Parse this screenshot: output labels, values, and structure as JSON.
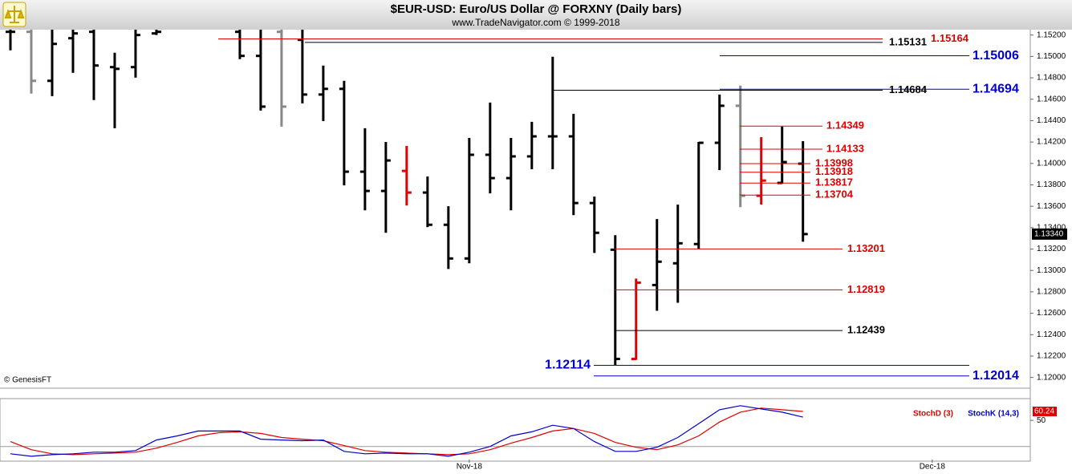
{
  "chart_data": [
    {
      "type": "ohlc",
      "title": "$EUR-USD:  Euro/US Dollar @ FORXNY  (Daily bars)",
      "subtitle": "www.TradeNavigator.com © 1999-2018",
      "source": "© GenesisFT",
      "xlim": [
        -0.5,
        48.9
      ],
      "ylim": [
        1.119,
        1.1525
      ],
      "yticks": [
        {
          "value": 1.12,
          "label": "1.12000"
        },
        {
          "value": 1.122,
          "label": "1.12200"
        },
        {
          "value": 1.124,
          "label": "1.12400"
        },
        {
          "value": 1.126,
          "label": "1.12600"
        },
        {
          "value": 1.128,
          "label": "1.12800"
        },
        {
          "value": 1.13,
          "label": "1.13000"
        },
        {
          "value": 1.132,
          "label": "1.13200"
        },
        {
          "value": 1.134,
          "label": "1.13400"
        },
        {
          "value": 1.136,
          "label": "1.13600"
        },
        {
          "value": 1.138,
          "label": "1.13800"
        },
        {
          "value": 1.14,
          "label": "1.14000"
        },
        {
          "value": 1.142,
          "label": "1.14200"
        },
        {
          "value": 1.144,
          "label": "1.14400"
        },
        {
          "value": 1.146,
          "label": "1.14600"
        },
        {
          "value": 1.148,
          "label": "1.14800"
        },
        {
          "value": 1.15,
          "label": "1.15000"
        },
        {
          "value": 1.152,
          "label": "1.15200"
        }
      ],
      "open": [
        1.1523,
        1.1523,
        1.14772,
        1.1517,
        1.1523,
        1.149,
        1.149,
        1.15215,
        null,
        null,
        null,
        1.1523,
        1.15005,
        1.1523,
        1.15155,
        1.14644,
        1.14697,
        1.13923,
        1.13743,
        1.1393,
        1.13728,
        1.13427,
        1.13112,
        1.14081,
        1.13863,
        1.14066,
        1.14253,
        1.14253,
        1.1363,
        1.13194,
        1.12173,
        1.12864,
        1.13067,
        1.13247,
        1.14193,
        1.14539,
        1.13698,
        1.13818,
        1.13998
      ],
      "high": [
        1.15305,
        1.15253,
        1.15253,
        1.15253,
        1.15253,
        1.15035,
        1.15253,
        1.15253,
        null,
        null,
        null,
        1.15253,
        1.15253,
        1.15253,
        1.15253,
        1.14915,
        1.14772,
        1.14329,
        1.14201,
        1.14163,
        1.13878,
        1.136,
        1.14238,
        1.14569,
        1.14238,
        1.14389,
        1.14997,
        1.14464,
        1.1369,
        1.1333,
        1.12924,
        1.1348,
        1.13615,
        1.14201,
        1.14644,
        1.14727,
        1.14246,
        1.14344,
        1.14208
      ],
      "low": [
        1.15057,
        1.14652,
        1.14629,
        1.14847,
        1.14592,
        1.14329,
        1.14802,
        1.152,
        null,
        null,
        null,
        1.14975,
        1.14494,
        1.14344,
        1.14561,
        1.14396,
        1.13795,
        1.13562,
        1.13352,
        1.13607,
        1.13405,
        1.13014,
        1.13067,
        1.1372,
        1.13562,
        1.13946,
        1.13946,
        1.13517,
        1.13164,
        1.12114,
        1.12165,
        1.12623,
        1.12698,
        1.13202,
        1.13938,
        1.13592,
        1.13615,
        1.1381,
        1.13269
      ],
      "close": [
        1.1523,
        1.14772,
        1.15117,
        1.15215,
        1.14915,
        1.14884,
        1.152,
        1.1523,
        null,
        null,
        null,
        1.15005,
        1.14531,
        1.14531,
        1.14644,
        1.14697,
        1.13923,
        1.13743,
        1.14028,
        1.13728,
        1.13427,
        1.13112,
        1.14081,
        1.13863,
        1.14066,
        1.14253,
        1.14253,
        1.1363,
        1.13352,
        1.12173,
        1.12886,
        1.13082,
        1.13254,
        1.14193,
        1.14539,
        1.13698,
        1.1384,
        1.14013,
        1.1334
      ],
      "colors": [
        "#000",
        "#888",
        "#000",
        "#000",
        "#000",
        "#000",
        "#000",
        "#000",
        null,
        null,
        null,
        "#000",
        "#000",
        "#888",
        "#000",
        "#000",
        "#000",
        "#000",
        "#000",
        "#e00000",
        "#000",
        "#000",
        "#000",
        "#000",
        "#000",
        "#000",
        "#000",
        "#000",
        "#000",
        "#000",
        "#e00000",
        "#000",
        "#000",
        "#000",
        "#000",
        "#888",
        "#e00000",
        "#000",
        "#000"
      ],
      "levels": [
        {
          "value": 1.15164,
          "color": "#e00000"
        },
        {
          "value": 1.15131,
          "color": "#000"
        },
        {
          "value": 1.15006,
          "color": "#0000cc"
        },
        {
          "value": 1.14694,
          "color": "#0000cc"
        },
        {
          "value": 1.14684,
          "color": "#000"
        },
        {
          "value": 1.14349,
          "color": "#e00000"
        },
        {
          "value": 1.14133,
          "color": "#e00000"
        },
        {
          "value": 1.13998,
          "color": "#e00000"
        },
        {
          "value": 1.13918,
          "color": "#e00000"
        },
        {
          "value": 1.13817,
          "color": "#e00000"
        },
        {
          "value": 1.13704,
          "color": "#e00000"
        },
        {
          "value": 1.13201,
          "color": "#e00000"
        },
        {
          "value": 1.12819,
          "color": "#e00000"
        },
        {
          "value": 1.12439,
          "color": "#000"
        },
        {
          "value": 1.12114,
          "color": "#0000cc"
        },
        {
          "value": 1.12014,
          "color": "#0000cc"
        }
      ],
      "last_price": {
        "value": 1.1334,
        "label": "1.13340"
      }
    },
    {
      "type": "line",
      "xlim": [
        -0.5,
        48.9
      ],
      "xticks": [
        {
          "value": 22,
          "label": "Nov-18"
        },
        {
          "value": 44.2,
          "label": "Dec-18"
        }
      ],
      "ylim": [
        5,
        75
      ],
      "yticks": [
        50
      ],
      "hlines": [
        20
      ],
      "series": [
        {
          "name": "StochD (3)",
          "color": "#e00000",
          "values": [
            25.6,
            16.3,
            11.6,
            10.6,
            11.6,
            12.5,
            13.5,
            18.1,
            24.7,
            32.2,
            35.9,
            36.9,
            35.0,
            30.3,
            28.4,
            26.6,
            21.0,
            15.3,
            13.5,
            12.5,
            11.6,
            10.6,
            11.6,
            16.3,
            23.8,
            30.3,
            37.8,
            40.6,
            35.0,
            24.7,
            19.1,
            16.3,
            21.9,
            32.2,
            48.1,
            59.4,
            64.1,
            62.2,
            60.24
          ]
        },
        {
          "name": "StochK (14,3)",
          "color": "#0000cc",
          "values": [
            11.6,
            8.8,
            10.6,
            11.6,
            13.5,
            13.5,
            15.3,
            27.5,
            32.2,
            37.8,
            37.8,
            37.8,
            28.4,
            27.5,
            26.6,
            27.5,
            14.4,
            11.6,
            12.5,
            11.6,
            11.6,
            8.8,
            13.5,
            20.0,
            32.2,
            36.9,
            44.4,
            40.6,
            25.6,
            14.4,
            14.4,
            19.1,
            30.3,
            46.3,
            62.2,
            66.9,
            63.1,
            59.4,
            53.7
          ]
        }
      ]
    }
  ]
}
